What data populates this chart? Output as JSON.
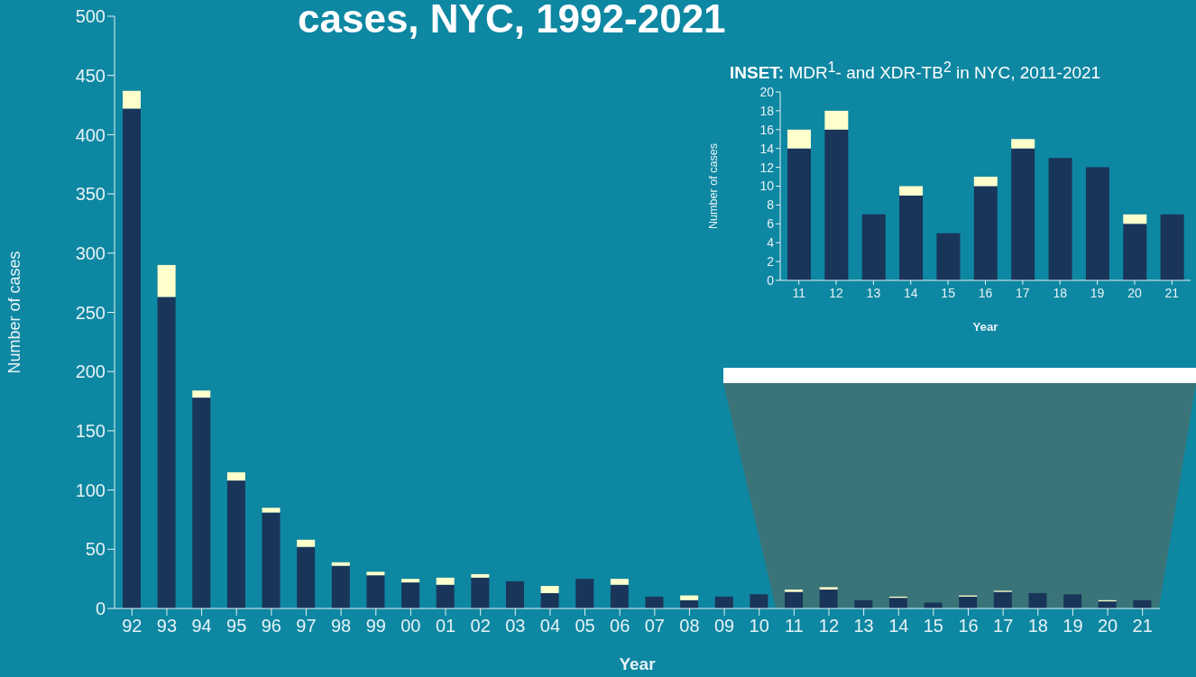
{
  "chart_data": [
    {
      "type": "bar",
      "title": "cases, NYC, 1992-2021",
      "xlabel": "Year",
      "ylabel": "Number of cases",
      "stacked": true,
      "categories": [
        "92",
        "93",
        "94",
        "95",
        "96",
        "97",
        "98",
        "99",
        "00",
        "01",
        "02",
        "03",
        "04",
        "05",
        "06",
        "07",
        "08",
        "09",
        "10",
        "11",
        "12",
        "13",
        "14",
        "15",
        "16",
        "17",
        "18",
        "19",
        "20",
        "21"
      ],
      "series": [
        {
          "color": "#1a355a",
          "values": [
            422,
            263,
            178,
            108,
            81,
            52,
            36,
            28,
            22,
            20,
            26,
            23,
            13,
            25,
            20,
            10,
            7,
            10,
            12,
            14,
            16,
            7,
            9,
            5,
            10,
            14,
            13,
            12,
            6,
            7
          ]
        },
        {
          "color": "#ffffcc",
          "values": [
            15,
            27,
            6,
            7,
            4,
            6,
            3,
            3,
            3,
            6,
            3,
            0,
            6,
            0,
            5,
            0,
            4,
            0,
            0,
            2,
            2,
            0,
            1,
            0,
            1,
            1,
            0,
            0,
            1,
            0
          ]
        }
      ],
      "ylim": [
        0,
        500
      ],
      "yticks": [
        0,
        50,
        100,
        150,
        200,
        250,
        300,
        350,
        400,
        450,
        500
      ],
      "grid": false,
      "legend": false
    },
    {
      "type": "bar",
      "title": "INSET: MDR$^{1}$- and XDR-TB$^{2}$ in NYC, 2011-2021",
      "xlabel": "Year",
      "ylabel": "Number of cases",
      "stacked": true,
      "categories": [
        "11",
        "12",
        "13",
        "14",
        "15",
        "16",
        "17",
        "18",
        "19",
        "20",
        "21"
      ],
      "series": [
        {
          "color": "#1a355a",
          "values": [
            14,
            16,
            7,
            9,
            5,
            10,
            14,
            13,
            12,
            6,
            7
          ]
        },
        {
          "color": "#ffffcc",
          "values": [
            2,
            2,
            0,
            1,
            0,
            1,
            1,
            0,
            0,
            1,
            0
          ]
        }
      ],
      "ylim": [
        0,
        20
      ],
      "yticks": [
        0,
        2,
        4,
        6,
        8,
        10,
        12,
        14,
        16,
        18,
        20
      ],
      "grid": false,
      "legend": false
    }
  ]
}
